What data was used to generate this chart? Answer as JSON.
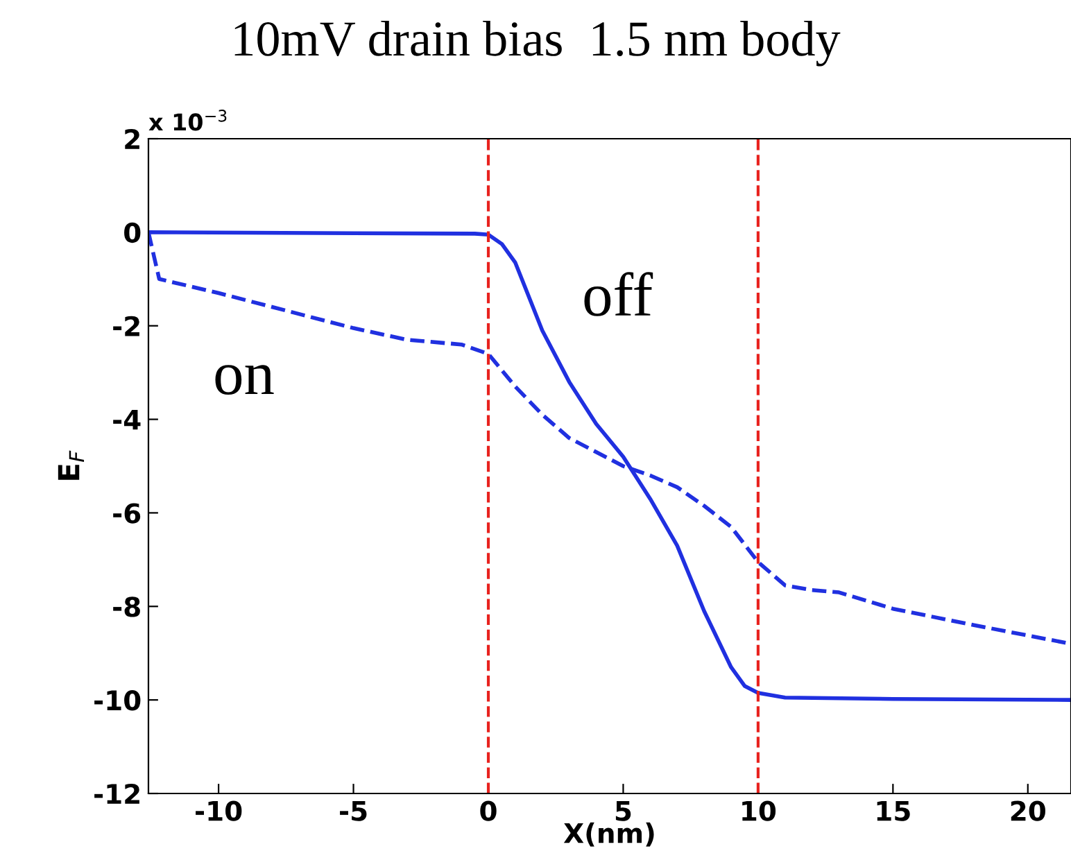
{
  "chart_data": {
    "type": "line",
    "title": "10mV drain bias  1.5 nm body",
    "xlabel": "X(nm)",
    "ylabel": "E$_{F}$",
    "xlim": [
      -12.6,
      21.6
    ],
    "xticks": [
      -10,
      -5,
      0,
      5,
      10,
      15,
      20
    ],
    "ylim": [
      -12,
      2
    ],
    "yticks": [
      -12,
      -10,
      -8,
      -6,
      -4,
      -2,
      0,
      2
    ],
    "grid": false,
    "legend": false,
    "annotations": [
      "x 10$^{−3}$",
      "off",
      "on"
    ],
    "ref_lines": [
      {
        "axis": "x",
        "value": 0,
        "color": "#e8221e",
        "line_style": "dashed"
      },
      {
        "axis": "x",
        "value": 10,
        "color": "#e8221e",
        "line_style": "dashed"
      }
    ],
    "series": [
      {
        "color": "#2030e0",
        "line_style": "solid",
        "x": [
          -12.6,
          -5,
          -0.5,
          0,
          0.5,
          1,
          2,
          3,
          4,
          5,
          6,
          7,
          8,
          9,
          9.5,
          10,
          11,
          15,
          21.6
        ],
        "values": [
          0,
          -0.02,
          -0.03,
          -0.05,
          -0.25,
          -0.65,
          -2.1,
          -3.2,
          -4.1,
          -4.8,
          -5.7,
          -6.7,
          -8.1,
          -9.3,
          -9.7,
          -9.85,
          -9.95,
          -9.98,
          -10.0
        ]
      },
      {
        "color": "#2030e0",
        "line_style": "dashed",
        "x": [
          -12.6,
          -12.2,
          -10,
          -5,
          -3,
          -1,
          0,
          1,
          2,
          3,
          4,
          5,
          6,
          7,
          8,
          9,
          10,
          11,
          12,
          13,
          15,
          18,
          21.6
        ],
        "values": [
          0,
          -1.0,
          -1.3,
          -2.05,
          -2.3,
          -2.4,
          -2.6,
          -3.3,
          -3.9,
          -4.4,
          -4.7,
          -5.0,
          -5.2,
          -5.45,
          -5.85,
          -6.3,
          -7.05,
          -7.55,
          -7.65,
          -7.7,
          -8.05,
          -8.4,
          -8.8
        ]
      }
    ]
  }
}
